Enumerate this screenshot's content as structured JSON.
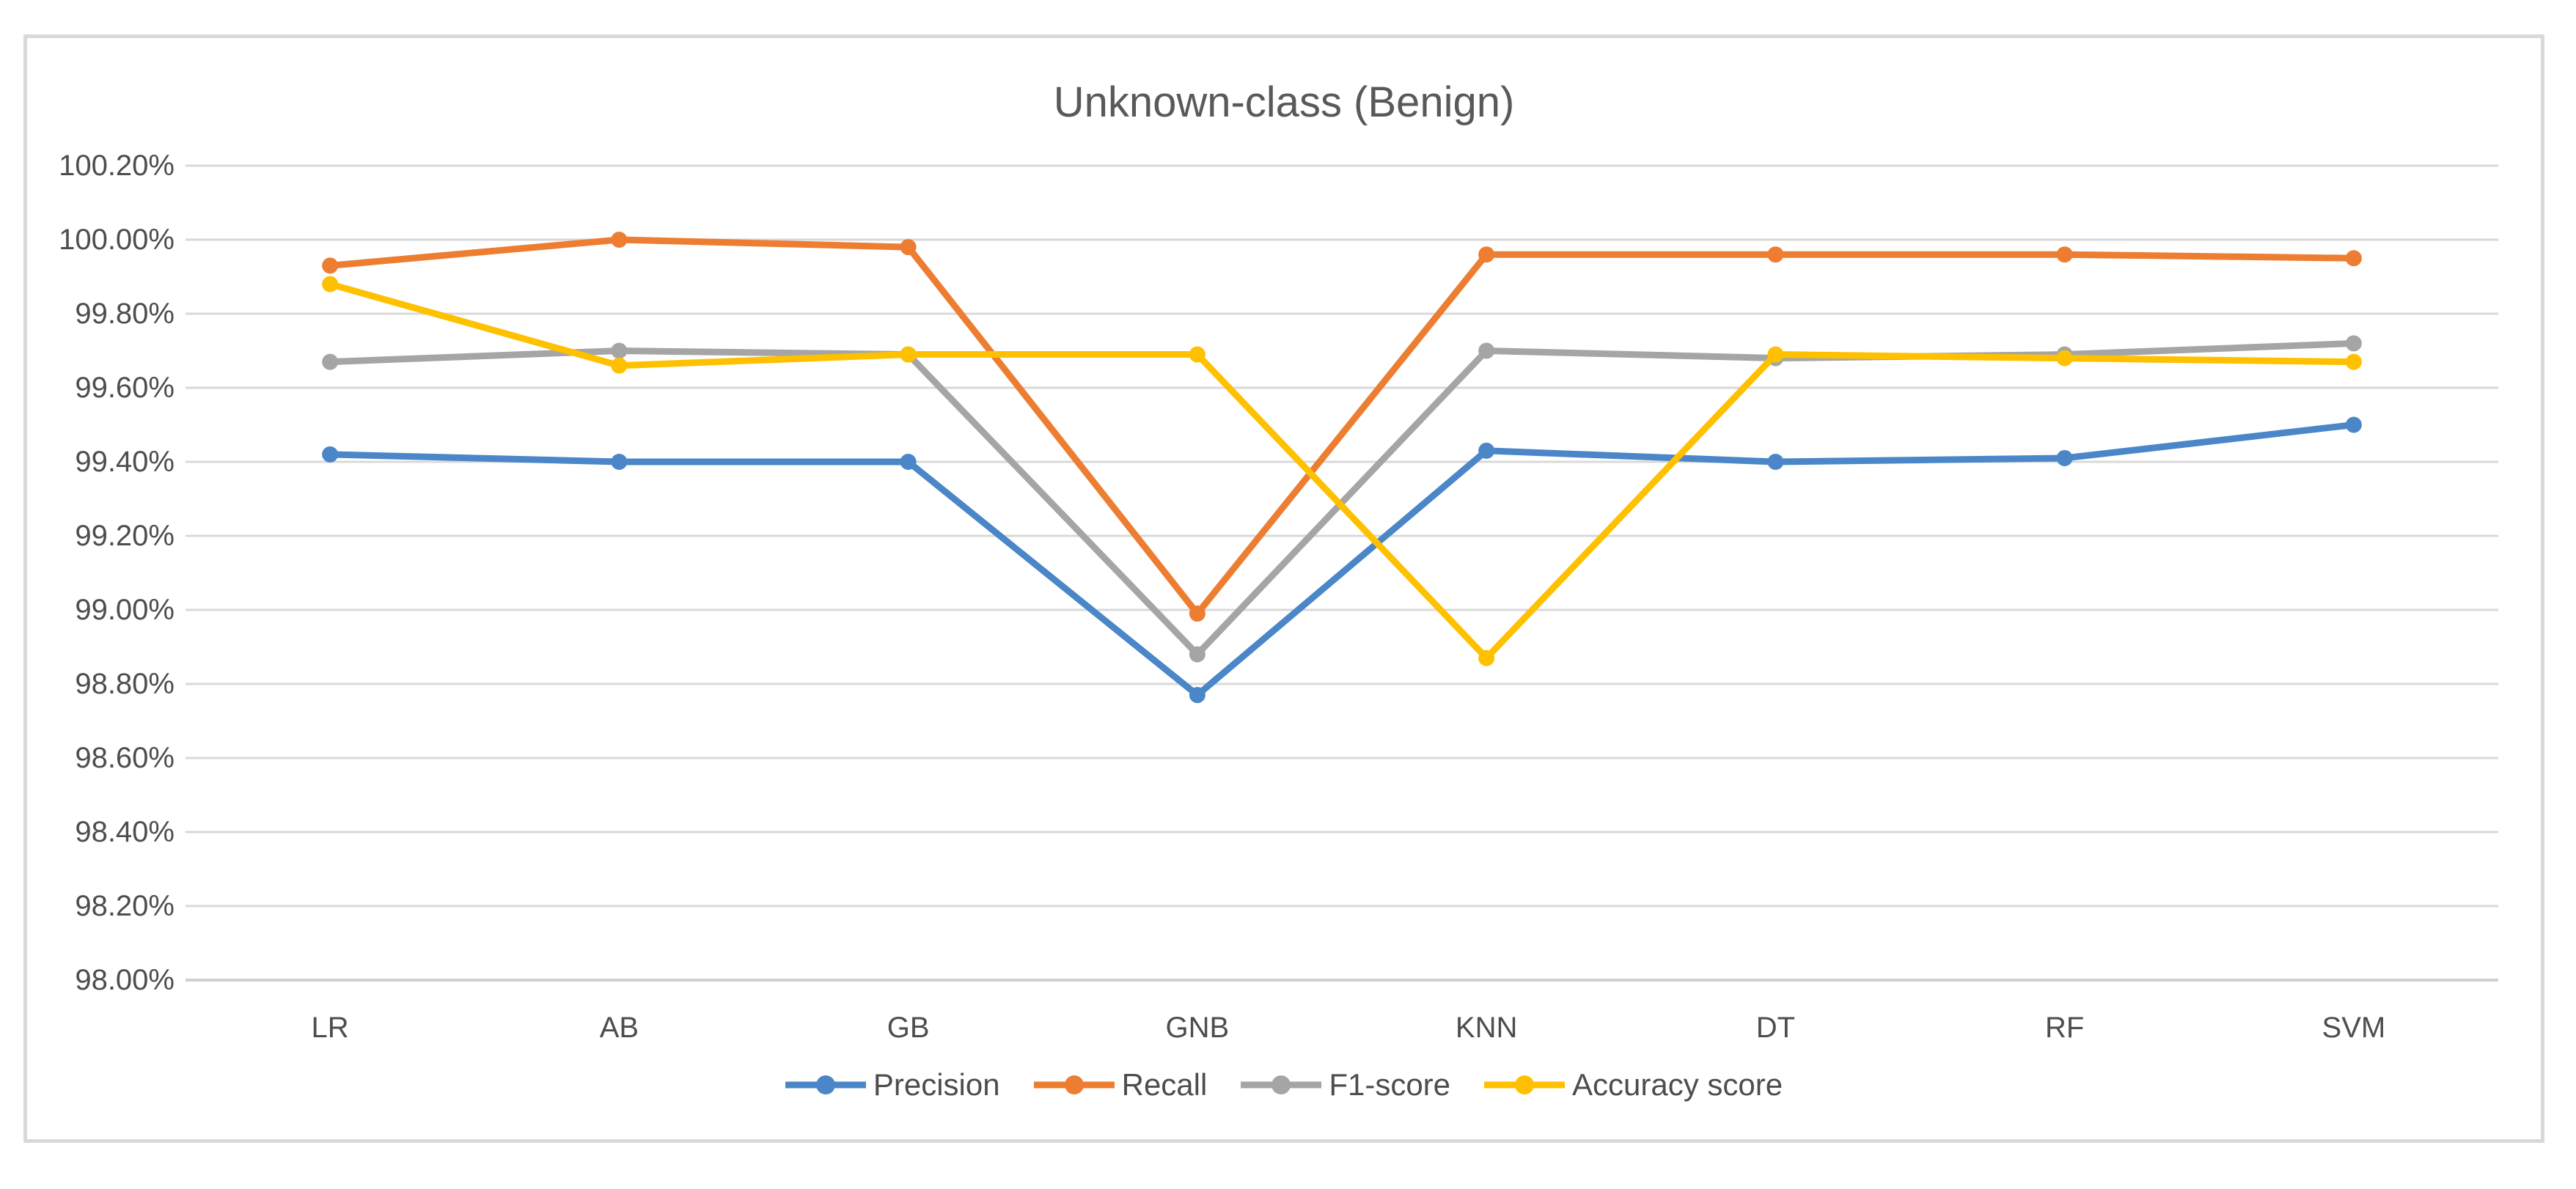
{
  "chart_data": {
    "type": "line",
    "title": "Unknown-class (Benign)",
    "categories": [
      "LR",
      "AB",
      "GB",
      "GNB",
      "KNN",
      "DT",
      "RF",
      "SVM"
    ],
    "series": [
      {
        "name": "Precision",
        "color": "#4A86C8",
        "values": [
          99.42,
          99.4,
          99.4,
          98.77,
          99.43,
          99.4,
          99.41,
          99.5
        ]
      },
      {
        "name": "Recall",
        "color": "#ED7D31",
        "values": [
          99.93,
          100.0,
          99.98,
          98.99,
          99.96,
          99.96,
          99.96,
          99.95
        ]
      },
      {
        "name": "F1-score",
        "color": "#A5A5A5",
        "values": [
          99.67,
          99.7,
          99.69,
          98.88,
          99.7,
          99.68,
          99.69,
          99.72
        ]
      },
      {
        "name": "Accuracy score",
        "color": "#FFC000",
        "values": [
          99.88,
          99.66,
          99.69,
          99.69,
          98.87,
          99.69,
          99.68,
          99.67
        ]
      }
    ],
    "ylim": [
      98.0,
      100.2
    ],
    "ytick_step": 0.2,
    "y_tick_labels": [
      "100.20%",
      "100.00%",
      "99.80%",
      "99.60%",
      "99.40%",
      "99.20%",
      "99.00%",
      "98.80%",
      "98.60%",
      "98.40%",
      "98.20%",
      "98.00%"
    ],
    "xlabel": "",
    "ylabel": "",
    "grid": true,
    "legend_position": "bottom"
  },
  "style": {
    "background": "#FFFFFF",
    "border_color": "#D9D9D9",
    "gridline_color": "#D9D9D9",
    "axis_line_color": "#D0D0D0",
    "title_color": "#595959",
    "label_color": "#4D4D4D"
  }
}
